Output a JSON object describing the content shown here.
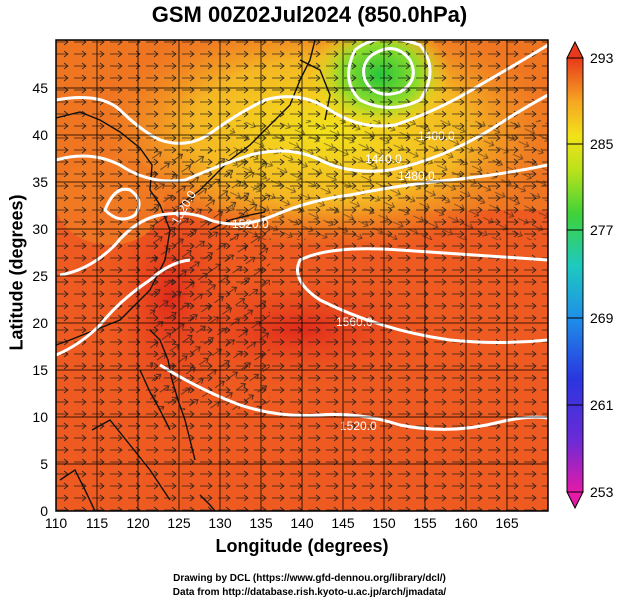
{
  "title": "GSM 00Z02Jul2024 (850.0hPa)",
  "x_axis_label": "Longitude (degrees)",
  "y_axis_label": "Latitude  (degrees)",
  "x_ticks": [
    "110",
    "115",
    "120",
    "125",
    "130",
    "135",
    "140",
    "145",
    "150",
    "155",
    "160",
    "165"
  ],
  "y_ticks": [
    "0",
    "5",
    "10",
    "15",
    "20",
    "25",
    "30",
    "35",
    "40",
    "45"
  ],
  "colorbar_labels": [
    "293",
    "285",
    "277",
    "269",
    "261",
    "253"
  ],
  "contour_labels": [
    "1560.0",
    "1520.0",
    "1520.0",
    "1480.0",
    "1440.0",
    "1400.0",
    "1520.0"
  ],
  "credit_line_1": "Drawing by DCL (https://www.gfd-dennou.org/library/dcl/)",
  "credit_line_2": "Data from http://database.rish.kyoto-u.ac.jp/arch/jmadata/",
  "colors": {
    "warm_core": "#e8391a",
    "warm": "#f06a1e",
    "orange": "#f5a623",
    "yellow": "#f2e21a",
    "green": "#3fd23a",
    "contour": "#ffffff"
  },
  "map_extent": {
    "lon": [
      110,
      170
    ],
    "lat": [
      0,
      50
    ]
  },
  "colorbar_range": [
    253,
    293
  ]
}
